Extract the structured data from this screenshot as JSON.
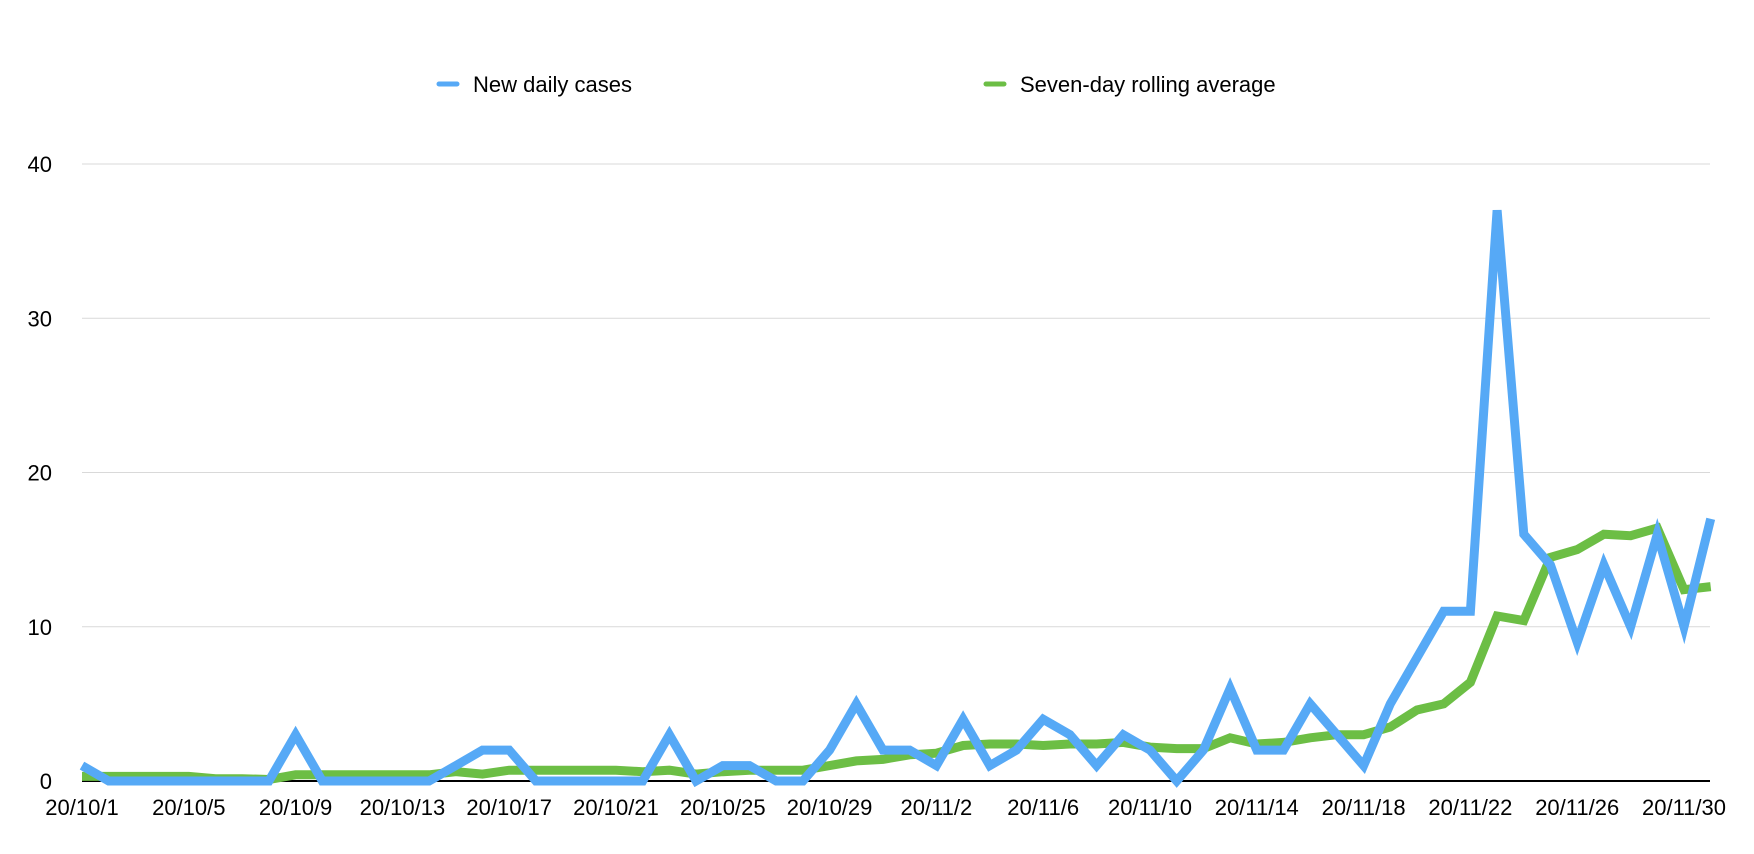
{
  "chart_data": {
    "type": "line",
    "title": "",
    "xlabel": "",
    "ylabel": "",
    "ylim": [
      0,
      40
    ],
    "yticks": [
      0,
      10,
      20,
      30,
      40
    ],
    "grid": true,
    "legend_position": "top",
    "x_tick_labels": [
      "20/10/1",
      "20/10/5",
      "20/10/9",
      "20/10/13",
      "20/10/17",
      "20/10/21",
      "20/10/25",
      "20/10/29",
      "20/11/2",
      "20/11/6",
      "20/11/10",
      "20/11/14",
      "20/11/18",
      "20/11/22",
      "20/11/26",
      "20/11/30"
    ],
    "x": [
      "20/10/1",
      "20/10/2",
      "20/10/3",
      "20/10/4",
      "20/10/5",
      "20/10/6",
      "20/10/7",
      "20/10/8",
      "20/10/9",
      "20/10/10",
      "20/10/11",
      "20/10/12",
      "20/10/13",
      "20/10/14",
      "20/10/15",
      "20/10/16",
      "20/10/17",
      "20/10/18",
      "20/10/19",
      "20/10/20",
      "20/10/21",
      "20/10/22",
      "20/10/23",
      "20/10/24",
      "20/10/25",
      "20/10/26",
      "20/10/27",
      "20/10/28",
      "20/10/29",
      "20/10/30",
      "20/10/31",
      "20/11/1",
      "20/11/2",
      "20/11/3",
      "20/11/4",
      "20/11/5",
      "20/11/6",
      "20/11/7",
      "20/11/8",
      "20/11/9",
      "20/11/10",
      "20/11/11",
      "20/11/12",
      "20/11/13",
      "20/11/14",
      "20/11/15",
      "20/11/16",
      "20/11/17",
      "20/11/18",
      "20/11/19",
      "20/11/20",
      "20/11/21",
      "20/11/22",
      "20/11/23",
      "20/11/24",
      "20/11/25",
      "20/11/26",
      "20/11/27",
      "20/11/28",
      "20/11/29",
      "20/11/30",
      "20/12/1"
    ],
    "series": [
      {
        "name": "New daily cases",
        "color": "#56a9f6",
        "values": [
          1,
          0,
          0,
          0,
          0,
          0,
          0,
          0,
          3,
          0,
          0,
          0,
          0,
          0,
          1,
          2,
          2,
          0,
          0,
          0,
          0,
          0,
          3,
          0,
          1,
          1,
          0,
          0,
          2,
          5,
          2,
          2,
          1,
          4,
          1,
          2,
          4,
          3,
          1,
          3,
          2,
          0,
          2,
          6,
          2,
          2,
          5,
          3,
          1,
          5,
          8,
          11,
          11,
          37,
          16,
          14,
          9,
          14,
          10,
          16,
          10,
          17
        ]
      },
      {
        "name": "Seven-day rolling average",
        "color": "#6cbe45",
        "values": [
          0.3,
          0.3,
          0.3,
          0.3,
          0.3,
          0.15,
          0.15,
          0.1,
          0.4,
          0.4,
          0.4,
          0.4,
          0.4,
          0.4,
          0.6,
          0.45,
          0.7,
          0.7,
          0.7,
          0.7,
          0.7,
          0.6,
          0.7,
          0.45,
          0.6,
          0.7,
          0.7,
          0.7,
          1.0,
          1.3,
          1.4,
          1.7,
          1.8,
          2.3,
          2.4,
          2.4,
          2.3,
          2.4,
          2.4,
          2.5,
          2.2,
          2.1,
          2.1,
          2.8,
          2.4,
          2.5,
          2.8,
          3.0,
          3.0,
          3.5,
          4.6,
          5.0,
          6.4,
          10.7,
          10.4,
          14.5,
          15.0,
          16.0,
          15.9,
          16.4,
          12.4,
          12.6
        ]
      }
    ]
  }
}
